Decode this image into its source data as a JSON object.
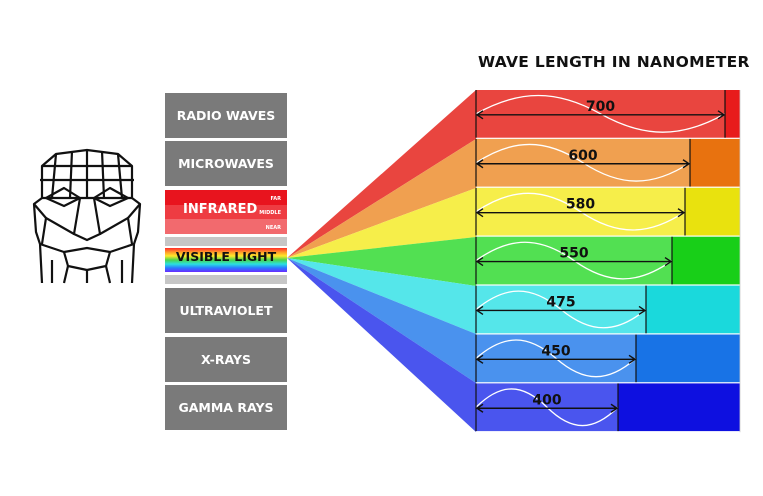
{
  "title": "WAVE LENGTH IN NANOMETER",
  "spectrum": {
    "radio": "RADIO WAVES",
    "microwaves": "MICROWAVES",
    "infrared": "INFRARED",
    "ir_far": "FAR",
    "ir_middle": "MIDDLE",
    "ir_near": "NEAR",
    "visible": "VISIBLE LIGHT",
    "ultraviolet": "ULTRAVIOLET",
    "xrays": "X-RAYS",
    "gamma": "GAMMA RAYS"
  },
  "wavelengths": [
    {
      "value": "700",
      "color": "#e9453f",
      "dark": "#e81c1c"
    },
    {
      "value": "600",
      "color": "#f0a050",
      "dark": "#e8720f"
    },
    {
      "value": "580",
      "color": "#f6ee4a",
      "dark": "#e9e20e"
    },
    {
      "value": "550",
      "color": "#52e052",
      "dark": "#18cf18"
    },
    {
      "value": "475",
      "color": "#55e6ea",
      "dark": "#1ad9dc"
    },
    {
      "value": "450",
      "color": "#4a92ee",
      "dark": "#1873e6"
    },
    {
      "value": "400",
      "color": "#4a55ee",
      "dark": "#0e10e0"
    }
  ],
  "colors": {
    "band_gray": "#7a7a7a",
    "ir_far": "#e8141e",
    "ir_middle": "#ee3c42",
    "ir_near": "#f26a6e"
  },
  "icons": {
    "face": "face-wireframe-icon"
  }
}
